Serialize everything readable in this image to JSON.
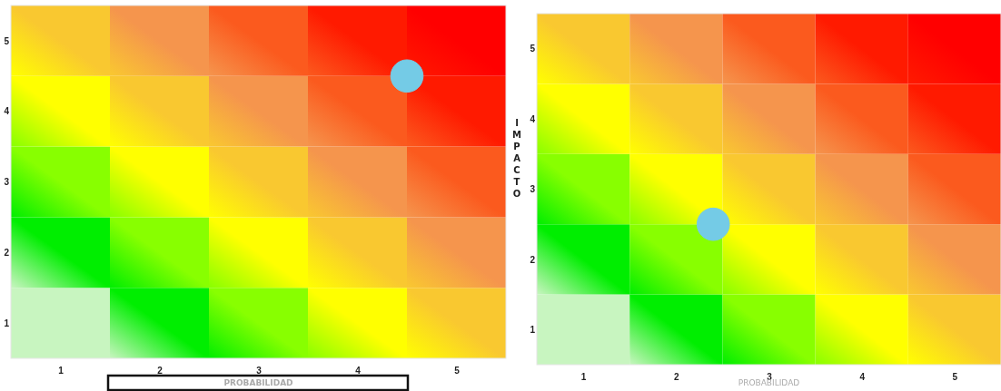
{
  "chart_data": [
    {
      "type": "scatter",
      "xlabel": "PROBABILIDAD",
      "xlim": [
        0.5,
        5.5
      ],
      "ylim": [
        0.5,
        5.5
      ],
      "xticks": [
        1,
        2,
        3,
        4,
        5
      ],
      "yticks": [
        1,
        2,
        3,
        4,
        5
      ],
      "marker": "circle",
      "series": [
        {
          "color": "#74cbe6",
          "x": [
            4.5
          ],
          "values": [
            4.5
          ]
        }
      ]
    },
    {
      "type": "scatter",
      "xlabel": "PROBABILIDAD",
      "ylabel": "IMPACTO",
      "xlim": [
        0.5,
        5.5
      ],
      "ylim": [
        0.5,
        5.5
      ],
      "xticks": [
        1,
        2,
        3,
        4,
        5
      ],
      "yticks": [
        1,
        2,
        3,
        4,
        5
      ],
      "marker": "circle",
      "series": [
        {
          "color": "#74cbe6",
          "x": [
            2.4
          ],
          "values": [
            2.5
          ]
        }
      ]
    }
  ]
}
